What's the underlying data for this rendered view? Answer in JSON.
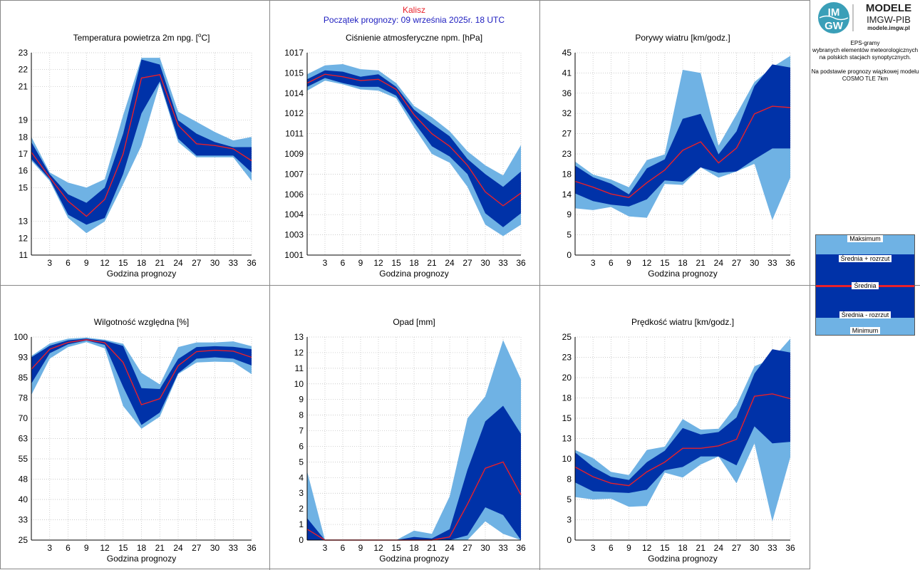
{
  "header": {
    "station": "Kalisz",
    "forecast_start": "Początek prognozy: 09 września 2025r. 18 UTC"
  },
  "logo": {
    "title": "MODELE",
    "org": "IMGW-PIB",
    "url": "modele.imgw.pl",
    "badge_top": "IM",
    "badge_bottom": "GW"
  },
  "info": {
    "lines": [
      "EPS-gramy",
      "wybranych elementów meteorologicznych",
      "na polskich stacjach  synoptycznych.",
      "",
      "Na podstawie prognozy wiązkowej modelu",
      "COSMO TLE 7km"
    ]
  },
  "legend": {
    "max": "Maksimum",
    "mean_plus": "Średnia + rozrzut",
    "mean": "Średnia",
    "mean_minus": "Średnia - rozrzut",
    "min": "Minimum"
  },
  "colors": {
    "band_outer": "#6fb2e4",
    "band_inner": "#0032a8",
    "mean_line": "#e8202a",
    "title_station": "#e8202a",
    "title_forecast": "#2020c0",
    "grid": "#bbbbbb"
  },
  "chart_data": [
    {
      "type": "area",
      "title": "Temperatura powietrza 2m npg. [°C]",
      "title_main": "Temperatura powietrza 2m npg. [",
      "title_sup": "o",
      "title_tail": "C]",
      "xlabel": "Godzina prognozy",
      "ylabel": "",
      "x": [
        0,
        3,
        6,
        9,
        12,
        15,
        18,
        21,
        24,
        27,
        30,
        33,
        36
      ],
      "xticks": [
        3,
        6,
        9,
        12,
        15,
        18,
        21,
        24,
        27,
        30,
        33,
        36
      ],
      "ylim": [
        11,
        23
      ],
      "yticks": [
        11,
        12,
        13,
        15,
        16,
        17,
        18,
        19,
        21,
        22,
        23
      ],
      "grid": true,
      "min": [
        16.6,
        15.4,
        13.2,
        12.3,
        13.0,
        15.2,
        17.5,
        21.2,
        17.7,
        16.8,
        16.8,
        16.8,
        15.4
      ],
      "mean_minus": [
        16.7,
        15.5,
        13.4,
        12.8,
        13.2,
        15.8,
        19.4,
        21.3,
        17.9,
        16.9,
        16.9,
        16.9,
        15.9
      ],
      "mean": [
        17.1,
        15.6,
        14.2,
        13.3,
        14.3,
        17.0,
        21.5,
        21.7,
        18.7,
        17.6,
        17.5,
        17.3,
        16.6
      ],
      "mean_plus": [
        17.7,
        15.8,
        14.6,
        14.1,
        15.0,
        18.2,
        22.6,
        22.3,
        19.0,
        18.2,
        17.7,
        17.4,
        17.4
      ],
      "max": [
        18.0,
        15.9,
        15.3,
        15.0,
        15.5,
        19.3,
        22.7,
        22.7,
        19.5,
        18.9,
        18.3,
        17.8,
        18.0
      ]
    },
    {
      "type": "area",
      "title": "Ciśnienie atmosferyczne npm. [hPa]",
      "xlabel": "Godzina prognozy",
      "ylabel": "",
      "x": [
        0,
        3,
        6,
        9,
        12,
        15,
        18,
        21,
        24,
        27,
        30,
        33,
        36
      ],
      "xticks": [
        3,
        6,
        9,
        12,
        15,
        18,
        21,
        24,
        27,
        30,
        33,
        36
      ],
      "ylim": [
        1001,
        1017
      ],
      "ylim_note": "axis printed with tick labels below",
      "yticks": [
        1001,
        1003,
        1004,
        1006,
        1007,
        1009,
        1011,
        1012,
        1014,
        1015,
        1017
      ],
      "ytick_positions": [
        1001,
        1002.6,
        1004.2,
        1005.8,
        1007.4,
        1009,
        1010.6,
        1012.2,
        1013.8,
        1015.4,
        1017
      ],
      "grid": true,
      "min": [
        1014.0,
        1014.8,
        1014.5,
        1014.1,
        1014.0,
        1013.4,
        1011.1,
        1009.0,
        1008.3,
        1006.4,
        1003.4,
        1002.5,
        1003.4
      ],
      "mean_minus": [
        1014.3,
        1015.0,
        1014.6,
        1014.3,
        1014.3,
        1013.6,
        1011.5,
        1009.6,
        1008.8,
        1007.4,
        1004.3,
        1003.2,
        1004.3
      ],
      "mean": [
        1014.6,
        1015.3,
        1015.1,
        1014.8,
        1014.9,
        1014.1,
        1012.1,
        1010.6,
        1009.6,
        1008.1,
        1006.0,
        1004.9,
        1005.9
      ],
      "mean_plus": [
        1014.9,
        1015.6,
        1015.5,
        1015.1,
        1015.3,
        1014.3,
        1012.5,
        1011.4,
        1010.4,
        1008.6,
        1007.4,
        1006.4,
        1007.6
      ],
      "max": [
        1015.3,
        1016.0,
        1016.1,
        1015.7,
        1015.6,
        1014.6,
        1012.8,
        1011.9,
        1010.8,
        1009.2,
        1008.1,
        1007.3,
        1009.7
      ]
    },
    {
      "type": "area",
      "title": "Porywy wiatru [km/godz.]",
      "xlabel": "Godzina prognozy",
      "ylabel": "",
      "x": [
        0,
        3,
        6,
        9,
        12,
        15,
        18,
        21,
        24,
        27,
        30,
        33,
        36
      ],
      "xticks": [
        3,
        6,
        9,
        12,
        15,
        18,
        21,
        24,
        27,
        30,
        33,
        36
      ],
      "ylim": [
        0,
        45
      ],
      "yticks": [
        0,
        5,
        9,
        14,
        18,
        23,
        27,
        32,
        36,
        41,
        45
      ],
      "ytick_positions": [
        0,
        4.5,
        9,
        13.5,
        18,
        22.5,
        27,
        31.5,
        36,
        40.5,
        45
      ],
      "grid": true,
      "min": [
        10.4,
        10.0,
        10.7,
        8.6,
        8.3,
        15.8,
        15.6,
        19.5,
        17.2,
        18.6,
        20.3,
        7.8,
        17.2
      ],
      "mean_minus": [
        13.7,
        12.0,
        11.2,
        10.8,
        12.4,
        16.6,
        16.3,
        19.5,
        18.3,
        18.6,
        21.3,
        23.7,
        23.7
      ],
      "mean": [
        16.4,
        15.1,
        13.6,
        12.8,
        16.1,
        18.9,
        23.3,
        25.2,
        20.5,
        23.8,
        31.4,
        33.1,
        32.8
      ],
      "mean_plus": [
        19.9,
        17.3,
        15.9,
        13.5,
        19.3,
        21.3,
        30.3,
        31.4,
        22.4,
        27.5,
        37.6,
        42.4,
        41.7
      ],
      "max": [
        20.8,
        17.9,
        16.8,
        15.1,
        21.1,
        22.4,
        41.2,
        40.5,
        24.3,
        31.3,
        38.5,
        41.8,
        44.3
      ]
    },
    {
      "type": "area",
      "title": "Wilgotność względna [%]",
      "xlabel": "Godzina prognozy",
      "ylabel": "",
      "x": [
        0,
        3,
        6,
        9,
        12,
        15,
        18,
        21,
        24,
        27,
        30,
        33,
        36
      ],
      "xticks": [
        3,
        6,
        9,
        12,
        15,
        18,
        21,
        24,
        27,
        30,
        33,
        36
      ],
      "ylim": [
        25,
        100
      ],
      "yticks": [
        25,
        33,
        40,
        48,
        55,
        63,
        70,
        78,
        85,
        93,
        100
      ],
      "ytick_positions": [
        25,
        32.5,
        40,
        47.5,
        55,
        62.5,
        70,
        77.5,
        85,
        92.5,
        100
      ],
      "grid": true,
      "min": [
        78.6,
        92.0,
        96.3,
        98.1,
        95.8,
        74.5,
        66.1,
        70.6,
        86.3,
        90.6,
        90.9,
        90.7,
        86.3
      ],
      "mean_minus": [
        82.8,
        94.0,
        97.3,
        98.7,
        97.1,
        81.6,
        67.5,
        72.1,
        86.6,
        92.0,
        92.5,
        92.0,
        89.5
      ],
      "mean": [
        88.1,
        95.5,
        98.0,
        99.0,
        97.9,
        90.6,
        75.0,
        77.2,
        89.4,
        94.6,
        95.1,
        94.8,
        92.5
      ],
      "mean_plus": [
        92.5,
        96.8,
        98.8,
        99.4,
        98.6,
        96.7,
        81.1,
        80.8,
        91.9,
        96.3,
        96.6,
        96.4,
        95.5
      ],
      "max": [
        93.0,
        97.6,
        99.4,
        99.8,
        99.0,
        97.5,
        86.8,
        82.5,
        96.3,
        98.0,
        98.0,
        98.4,
        96.6
      ]
    },
    {
      "type": "area",
      "title": "Opad [mm]",
      "xlabel": "Godzina prognozy",
      "ylabel": "",
      "x": [
        0,
        3,
        6,
        9,
        12,
        15,
        18,
        21,
        24,
        27,
        30,
        33,
        36
      ],
      "xticks": [
        3,
        6,
        9,
        12,
        15,
        18,
        21,
        24,
        27,
        30,
        33,
        36
      ],
      "ylim": [
        0,
        13
      ],
      "yticks": [
        0,
        1,
        2,
        3,
        4,
        5,
        6,
        7,
        8,
        9,
        10,
        11,
        12,
        13
      ],
      "grid": true,
      "min": [
        0,
        0,
        0,
        0,
        0,
        0,
        0,
        0,
        0,
        0,
        1.2,
        0.4,
        0
      ],
      "mean_minus": [
        0,
        0,
        0,
        0,
        0,
        0,
        0,
        0,
        0,
        0.3,
        2.1,
        1.6,
        0
      ],
      "mean": [
        0.7,
        0,
        0,
        0,
        0,
        0,
        0,
        0,
        0.2,
        2.3,
        4.6,
        5.0,
        2.9
      ],
      "mean_plus": [
        1.4,
        0,
        0,
        0,
        0,
        0,
        0.2,
        0.1,
        0.7,
        4.5,
        7.6,
        8.6,
        6.8
      ],
      "max": [
        4.4,
        0,
        0,
        0,
        0,
        0,
        0.6,
        0.4,
        2.8,
        7.8,
        9.2,
        12.8,
        10.3
      ]
    },
    {
      "type": "area",
      "title": "Prędkość wiatru [km/godz.]",
      "xlabel": "Godzina prognozy",
      "ylabel": "",
      "x": [
        0,
        3,
        6,
        9,
        12,
        15,
        18,
        21,
        24,
        27,
        30,
        33,
        36
      ],
      "xticks": [
        3,
        6,
        9,
        12,
        15,
        18,
        21,
        24,
        27,
        30,
        33,
        36
      ],
      "ylim": [
        0,
        25
      ],
      "yticks": [
        0,
        3,
        5,
        8,
        10,
        13,
        15,
        18,
        20,
        23,
        25
      ],
      "ytick_positions": [
        0,
        2.5,
        5,
        7.5,
        10,
        12.5,
        15,
        17.5,
        20,
        22.5,
        25
      ],
      "grid": true,
      "min": [
        5.3,
        5.0,
        5.1,
        4.1,
        4.2,
        8.3,
        7.7,
        9.3,
        10.3,
        7.0,
        11.9,
        2.3,
        10.2
      ],
      "mean_minus": [
        7.1,
        6.0,
        5.9,
        5.8,
        6.2,
        8.6,
        9.0,
        10.3,
        10.3,
        9.2,
        14.0,
        11.9,
        12.1
      ],
      "mean": [
        9.0,
        7.8,
        7.0,
        6.7,
        8.4,
        9.6,
        11.3,
        11.3,
        11.6,
        12.4,
        17.7,
        18.0,
        17.4
      ],
      "mean_plus": [
        10.8,
        9.0,
        7.8,
        7.4,
        9.6,
        11.0,
        13.8,
        13.0,
        13.3,
        15.1,
        20.5,
        23.5,
        23.1
      ],
      "max": [
        11.1,
        10.1,
        8.4,
        8.0,
        11.1,
        11.5,
        14.9,
        13.6,
        13.7,
        16.6,
        21.4,
        22.3,
        24.8
      ]
    }
  ]
}
